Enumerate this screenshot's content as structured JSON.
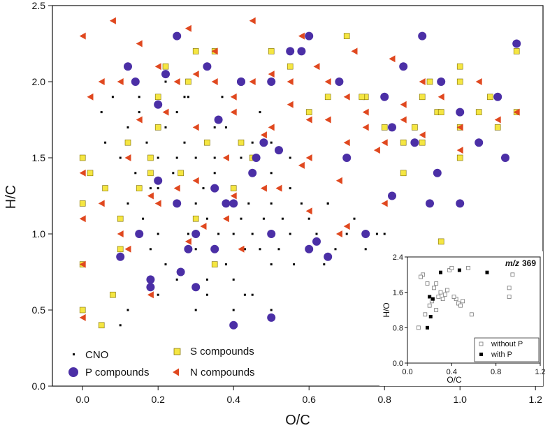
{
  "chart_data": [
    {
      "type": "scatter",
      "xlabel": "O/C",
      "ylabel": "H/C",
      "xlim": [
        -0.08,
        1.22
      ],
      "ylim": [
        0.0,
        2.5
      ],
      "xticks": [
        "0.0",
        "0.2",
        "0.4",
        "0.6",
        "0.8",
        "1.0",
        "1.2"
      ],
      "yticks": [
        "0.0",
        "0.5",
        "1.0",
        "1.5",
        "2.0",
        "2.5"
      ],
      "grid": false,
      "legend_position": "bottom-left",
      "legend": [
        {
          "label": "CNO",
          "marker": "small-square",
          "color": "#000000"
        },
        {
          "label": "S compounds",
          "marker": "square",
          "color": "#f5e642"
        },
        {
          "label": "P compounds",
          "marker": "circle",
          "color": "#4b2fa6"
        },
        {
          "label": "N compounds",
          "marker": "triangle-left",
          "color": "#e0481f"
        }
      ],
      "series": [
        {
          "name": "CNO",
          "x": [
            0.05,
            0.06,
            0.08,
            0.1,
            0.12,
            0.12,
            0.14,
            0.15,
            0.16,
            0.17,
            0.18,
            0.2,
            0.2,
            0.2,
            0.22,
            0.22,
            0.24,
            0.25,
            0.25,
            0.27,
            0.28,
            0.3,
            0.3,
            0.3,
            0.32,
            0.33,
            0.33,
            0.35,
            0.36,
            0.38,
            0.38,
            0.4,
            0.4,
            0.4,
            0.42,
            0.43,
            0.44,
            0.45,
            0.45,
            0.47,
            0.48,
            0.5,
            0.5,
            0.5,
            0.5,
            0.5,
            0.52,
            0.53,
            0.55,
            0.56,
            0.58,
            0.6,
            0.6,
            0.62,
            0.64,
            0.65,
            0.67,
            0.7,
            0.72,
            0.75,
            0.78,
            0.8,
            0.15,
            0.25,
            0.35,
            0.45,
            0.55,
            0.3,
            0.4,
            0.2,
            0.33,
            0.43,
            0.27,
            0.37,
            0.47,
            0.5,
            0.5,
            0.22,
            0.28,
            0.38,
            0.42,
            0.48,
            0.18,
            0.12,
            0.1,
            0.25,
            0.35,
            0.45,
            0.55,
            0.65
          ],
          "y": [
            1.8,
            1.6,
            1.9,
            1.5,
            1.7,
            1.2,
            1.4,
            1.9,
            1.1,
            1.6,
            0.9,
            1.5,
            1.3,
            1.0,
            1.7,
            0.8,
            1.4,
            1.2,
            0.7,
            1.6,
            1.0,
            1.5,
            1.2,
            0.9,
            1.3,
            1.1,
            0.7,
            1.4,
            1.0,
            1.2,
            0.8,
            1.3,
            1.0,
            0.7,
            1.1,
            0.9,
            1.2,
            1.0,
            0.6,
            0.9,
            1.1,
            1.0,
            0.8,
            1.2,
            1.4,
            0.5,
            0.9,
            1.1,
            1.0,
            0.8,
            1.2,
            0.9,
            1.1,
            1.0,
            0.8,
            1.2,
            0.9,
            1.0,
            1.1,
            0.9,
            1.0,
            1.0,
            1.8,
            1.8,
            1.7,
            1.6,
            1.5,
            0.5,
            0.5,
            0.6,
            0.6,
            0.6,
            1.9,
            1.9,
            1.8,
            1.7,
            1.6,
            2.0,
            1.9,
            1.7,
            1.5,
            1.3,
            1.3,
            0.5,
            0.4,
            1.5,
            1.5,
            1.4,
            1.3,
            1.2
          ]
        },
        {
          "name": "S compounds",
          "x": [
            0.0,
            0.0,
            0.0,
            0.0,
            0.02,
            0.05,
            0.08,
            0.1,
            0.12,
            0.15,
            0.18,
            0.2,
            0.22,
            0.25,
            0.28,
            0.3,
            0.33,
            0.35,
            0.4,
            0.45,
            0.5,
            0.55,
            0.6,
            0.65,
            0.7,
            0.75,
            0.8,
            0.85,
            0.88,
            0.9,
            0.92,
            0.94,
            0.95,
            1.0,
            1.0,
            1.0,
            1.05,
            1.1,
            1.12,
            1.15,
            1.15,
            0.3,
            0.35,
            0.2,
            0.18,
            0.1,
            0.06,
            0.26,
            0.85,
            0.9,
            0.95,
            1.0,
            1.08,
            0.42,
            0.74
          ],
          "y": [
            0.5,
            0.8,
            1.2,
            1.5,
            1.4,
            0.4,
            0.6,
            0.9,
            1.6,
            1.3,
            1.5,
            1.7,
            2.1,
            1.2,
            2.0,
            1.1,
            1.6,
            2.2,
            1.3,
            1.5,
            2.2,
            2.1,
            1.8,
            1.9,
            2.3,
            1.9,
            1.7,
            1.6,
            1.7,
            1.9,
            2.0,
            1.8,
            0.95,
            1.7,
            2.0,
            1.5,
            1.8,
            1.7,
            1.5,
            1.8,
            2.2,
            2.2,
            0.8,
            1.9,
            1.4,
            1.1,
            1.3,
            1.4,
            1.4,
            1.6,
            1.8,
            2.1,
            1.9,
            1.6,
            1.9
          ]
        },
        {
          "name": "P compounds",
          "x": [
            0.1,
            0.12,
            0.15,
            0.18,
            0.2,
            0.22,
            0.25,
            0.28,
            0.3,
            0.33,
            0.35,
            0.38,
            0.4,
            0.42,
            0.45,
            0.48,
            0.5,
            0.5,
            0.52,
            0.55,
            0.6,
            0.62,
            0.65,
            0.68,
            0.7,
            0.75,
            0.8,
            0.82,
            0.85,
            0.88,
            0.9,
            0.92,
            0.95,
            1.0,
            1.0,
            1.05,
            1.1,
            1.15,
            0.2,
            0.25,
            0.3,
            0.35,
            0.42,
            0.5,
            0.58,
            0.18,
            0.14,
            0.26,
            0.36,
            0.46,
            1.12,
            0.82,
            0.94,
            0.6,
            0.4
          ],
          "y": [
            0.85,
            2.1,
            1.0,
            0.7,
            1.85,
            2.05,
            1.2,
            0.9,
            0.65,
            2.1,
            1.3,
            1.2,
            0.4,
            2.0,
            1.4,
            1.6,
            1.0,
            0.45,
            1.55,
            2.2,
            2.3,
            0.95,
            0.85,
            2.0,
            1.5,
            1.0,
            1.9,
            1.25,
            2.1,
            1.6,
            2.3,
            1.2,
            2.0,
            1.8,
            1.2,
            1.6,
            1.9,
            2.25,
            1.35,
            2.3,
            1.0,
            0.9,
            2.0,
            2.0,
            2.2,
            0.65,
            2.0,
            0.75,
            1.75,
            1.5,
            1.5,
            1.7,
            1.4,
            0.9,
            1.2
          ]
        },
        {
          "name": "N compounds",
          "x": [
            0.0,
            0.0,
            0.0,
            0.0,
            0.0,
            0.02,
            0.05,
            0.08,
            0.1,
            0.12,
            0.15,
            0.18,
            0.2,
            0.22,
            0.25,
            0.28,
            0.3,
            0.32,
            0.35,
            0.38,
            0.4,
            0.42,
            0.45,
            0.48,
            0.5,
            0.52,
            0.55,
            0.58,
            0.6,
            0.62,
            0.65,
            0.68,
            0.7,
            0.72,
            0.75,
            0.78,
            0.8,
            0.82,
            0.85,
            0.9,
            0.95,
            1.0,
            1.05,
            1.1,
            1.15,
            0.05,
            0.1,
            0.15,
            0.25,
            0.35,
            0.45,
            0.55,
            0.65,
            0.75,
            0.85,
            0.3,
            0.4,
            0.5,
            0.6,
            0.7,
            0.2,
            0.3,
            0.4,
            0.6,
            0.7,
            0.8,
            0.9,
            1.0,
            0.12,
            0.18,
            0.28,
            0.38,
            0.48,
            0.58,
            0.68
          ],
          "y": [
            0.45,
            0.8,
            1.1,
            1.4,
            2.3,
            1.9,
            1.2,
            2.4,
            1.0,
            1.5,
            2.25,
            0.6,
            2.1,
            1.8,
            1.3,
            2.35,
            1.7,
            1.05,
            2.2,
            1.5,
            1.9,
            0.9,
            2.4,
            1.65,
            2.05,
            1.3,
            1.85,
            2.3,
            1.5,
            2.1,
            1.75,
            1.0,
            1.9,
            2.2,
            1.7,
            1.55,
            1.6,
            2.15,
            1.75,
            2.0,
            1.9,
            1.7,
            2.0,
            1.75,
            1.8,
            2.0,
            2.0,
            1.75,
            2.0,
            2.0,
            2.0,
            2.0,
            2.0,
            1.8,
            1.85,
            2.05,
            1.8,
            1.7,
            1.75,
            1.6,
            1.2,
            1.35,
            1.25,
            1.15,
            1.05,
            1.2,
            1.65,
            1.55,
            0.9,
            1.25,
            0.95,
            1.1,
            1.3,
            1.45,
            1.35
          ]
        }
      ]
    },
    {
      "type": "scatter",
      "title": "m/z 369",
      "title_prefix": "m/z",
      "title_value": "369",
      "xlabel": "O/C",
      "ylabel": "H/O",
      "xlim": [
        0.0,
        1.2
      ],
      "ylim": [
        0.0,
        2.4
      ],
      "xticks": [
        "0.0",
        "0.4",
        "0.8",
        "1.2"
      ],
      "yticks": [
        "0.0",
        "0.8",
        "1.6",
        "2.4"
      ],
      "grid": false,
      "legend_position": "bottom-right",
      "legend": [
        {
          "label": "without P",
          "marker": "open-square",
          "color": "#888888"
        },
        {
          "label": "with P",
          "marker": "filled-square",
          "color": "#000000"
        }
      ],
      "series": [
        {
          "name": "without P",
          "x": [
            0.1,
            0.14,
            0.16,
            0.18,
            0.2,
            0.22,
            0.24,
            0.26,
            0.28,
            0.3,
            0.32,
            0.34,
            0.36,
            0.38,
            0.4,
            0.44,
            0.46,
            0.48,
            0.5,
            0.55,
            0.58,
            0.92,
            0.92,
            0.95,
            0.12,
            0.26,
            0.42
          ],
          "y": [
            0.8,
            2.0,
            1.1,
            1.8,
            1.3,
            1.4,
            1.7,
            1.2,
            1.5,
            1.6,
            1.45,
            1.55,
            1.65,
            2.1,
            2.15,
            1.45,
            1.35,
            1.3,
            1.4,
            2.15,
            1.1,
            1.7,
            1.5,
            2.0,
            1.95,
            1.8,
            1.5
          ]
        },
        {
          "name": "with P",
          "x": [
            0.18,
            0.2,
            0.21,
            0.23,
            0.3,
            0.47,
            0.72
          ],
          "y": [
            0.8,
            1.5,
            1.05,
            1.45,
            2.05,
            2.1,
            2.05
          ]
        }
      ]
    }
  ]
}
